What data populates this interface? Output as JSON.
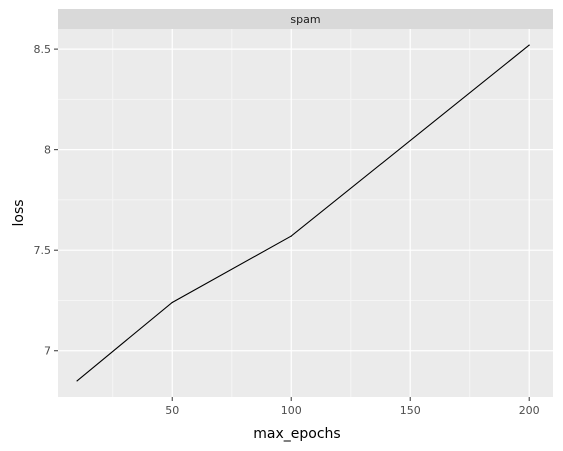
{
  "chart_data": {
    "type": "line",
    "facet": "spam",
    "xlabel": "max_epochs",
    "ylabel": "loss",
    "x": [
      10,
      50,
      100,
      200
    ],
    "y": [
      6.85,
      7.24,
      7.57,
      8.52
    ],
    "xlim": [
      2,
      210
    ],
    "ylim": [
      6.77,
      8.6
    ],
    "xticks": [
      50,
      100,
      150,
      200
    ],
    "xtick_labels": [
      "50",
      "100",
      "150",
      "200"
    ],
    "yticks": [
      7,
      7.5,
      8,
      8.5
    ],
    "ytick_labels": [
      "7",
      "7.5",
      "8",
      "8.5"
    ],
    "grid": true,
    "colors": {
      "panel_background": "#ebebeb",
      "strip_background": "#d9d9d9",
      "grid_major": "#ffffff",
      "grid_minor": "#f5f5f5",
      "line": "#000000"
    }
  }
}
